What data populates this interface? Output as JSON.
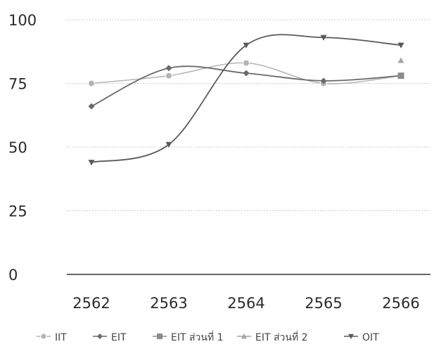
{
  "chart_data": {
    "type": "line",
    "categories": [
      "2562",
      "2563",
      "2564",
      "2565",
      "2566"
    ],
    "y_ticks": [
      "0",
      "25",
      "50",
      "75",
      "100"
    ],
    "ylim": [
      0,
      100
    ],
    "grid": true,
    "legend_position": "bottom",
    "series": [
      {
        "name": "IIT",
        "values": [
          75,
          78,
          83,
          75,
          78
        ],
        "color": "#b4b4b4",
        "marker": "circle"
      },
      {
        "name": "EIT",
        "values": [
          66,
          81,
          79,
          76,
          78
        ],
        "color": "#6a6a6a",
        "marker": "diamond"
      },
      {
        "name": "EIT ส่วนที่ 1",
        "values": [
          null,
          null,
          null,
          null,
          78
        ],
        "color": "#8c8c8c",
        "marker": "square"
      },
      {
        "name": "EIT ส่วนที่ 2",
        "values": [
          null,
          null,
          null,
          null,
          84
        ],
        "color": "#a6a6a6",
        "marker": "triangle"
      },
      {
        "name": "OIT",
        "values": [
          44,
          51,
          90,
          93,
          90
        ],
        "color": "#5a5a5a",
        "marker": "triangle-down"
      }
    ]
  }
}
